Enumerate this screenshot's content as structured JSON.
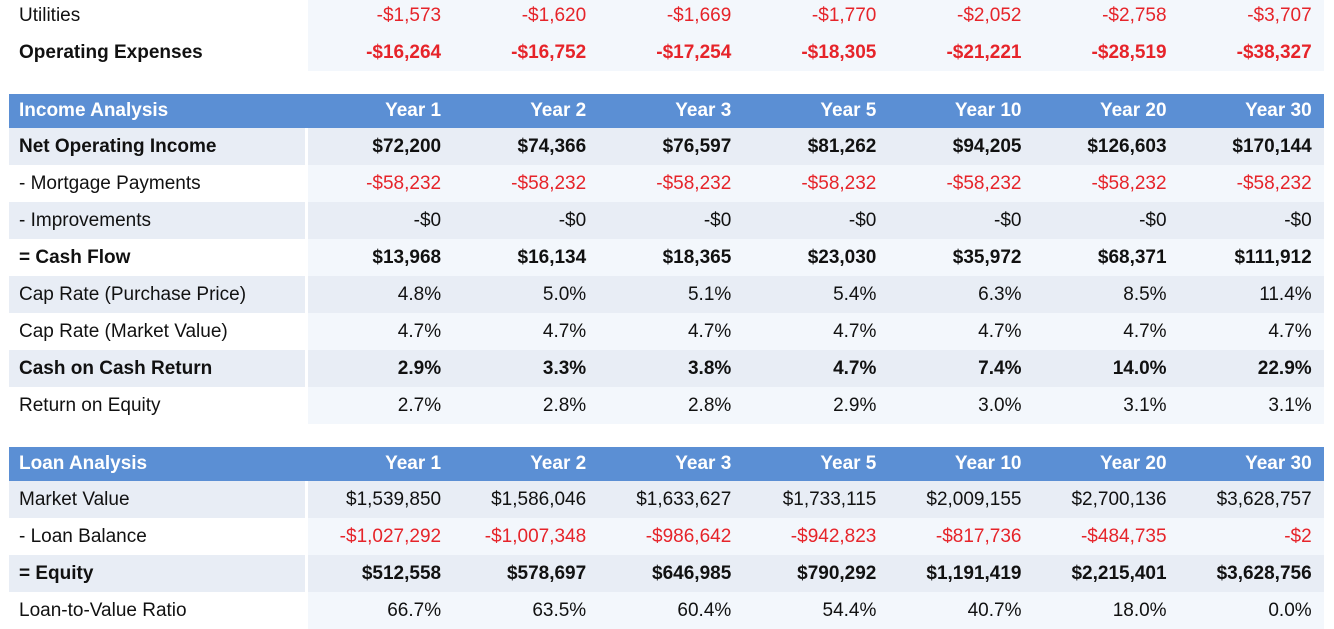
{
  "expenses": {
    "rows": [
      {
        "label": "Utilities",
        "bold": false,
        "style": "light",
        "values": [
          "-$1,573",
          "-$1,620",
          "-$1,669",
          "-$1,770",
          "-$2,052",
          "-$2,758",
          "-$3,707"
        ],
        "negative": true
      },
      {
        "label": "Operating Expenses",
        "bold": true,
        "style": "light",
        "values": [
          "-$16,264",
          "-$16,752",
          "-$17,254",
          "-$18,305",
          "-$21,221",
          "-$28,519",
          "-$38,327"
        ],
        "negative": true
      }
    ]
  },
  "income": {
    "title": "Income Analysis",
    "columns": [
      "Year 1",
      "Year 2",
      "Year 3",
      "Year 5",
      "Year 10",
      "Year 20",
      "Year 30"
    ],
    "rows": [
      {
        "label": "Net Operating Income",
        "bold": true,
        "style": "shaded",
        "values": [
          "$72,200",
          "$74,366",
          "$76,597",
          "$81,262",
          "$94,205",
          "$126,603",
          "$170,144"
        ],
        "negative": false
      },
      {
        "label": "- Mortgage Payments",
        "bold": false,
        "style": "light",
        "values": [
          "-$58,232",
          "-$58,232",
          "-$58,232",
          "-$58,232",
          "-$58,232",
          "-$58,232",
          "-$58,232"
        ],
        "negative": true
      },
      {
        "label": "- Improvements",
        "bold": false,
        "style": "shaded",
        "values": [
          "-$0",
          "-$0",
          "-$0",
          "-$0",
          "-$0",
          "-$0",
          "-$0"
        ],
        "negative": false
      },
      {
        "label": "= Cash Flow",
        "bold": true,
        "style": "light",
        "values": [
          "$13,968",
          "$16,134",
          "$18,365",
          "$23,030",
          "$35,972",
          "$68,371",
          "$111,912"
        ],
        "negative": false
      },
      {
        "label": "Cap Rate (Purchase Price)",
        "bold": false,
        "style": "shaded",
        "values": [
          "4.8%",
          "5.0%",
          "5.1%",
          "5.4%",
          "6.3%",
          "8.5%",
          "11.4%"
        ],
        "negative": false
      },
      {
        "label": "Cap Rate (Market Value)",
        "bold": false,
        "style": "light",
        "values": [
          "4.7%",
          "4.7%",
          "4.7%",
          "4.7%",
          "4.7%",
          "4.7%",
          "4.7%"
        ],
        "negative": false
      },
      {
        "label": "Cash on Cash Return",
        "bold": true,
        "style": "shaded",
        "values": [
          "2.9%",
          "3.3%",
          "3.8%",
          "4.7%",
          "7.4%",
          "14.0%",
          "22.9%"
        ],
        "negative": false
      },
      {
        "label": "Return on Equity",
        "bold": false,
        "style": "light",
        "values": [
          "2.7%",
          "2.8%",
          "2.8%",
          "2.9%",
          "3.0%",
          "3.1%",
          "3.1%"
        ],
        "negative": false
      }
    ]
  },
  "loan": {
    "title": "Loan Analysis",
    "columns": [
      "Year 1",
      "Year 2",
      "Year 3",
      "Year 5",
      "Year 10",
      "Year 20",
      "Year 30"
    ],
    "rows": [
      {
        "label": "Market Value",
        "bold": false,
        "style": "shaded",
        "values": [
          "$1,539,850",
          "$1,586,046",
          "$1,633,627",
          "$1,733,115",
          "$2,009,155",
          "$2,700,136",
          "$3,628,757"
        ],
        "negative": false
      },
      {
        "label": "- Loan Balance",
        "bold": false,
        "style": "light",
        "values": [
          "-$1,027,292",
          "-$1,007,348",
          "-$986,642",
          "-$942,823",
          "-$817,736",
          "-$484,735",
          "-$2"
        ],
        "negative": true
      },
      {
        "label": "= Equity",
        "bold": true,
        "style": "shaded",
        "values": [
          "$512,558",
          "$578,697",
          "$646,985",
          "$790,292",
          "$1,191,419",
          "$2,215,401",
          "$3,628,756"
        ],
        "negative": false
      },
      {
        "label": "Loan-to-Value Ratio",
        "bold": false,
        "style": "light",
        "values": [
          "66.7%",
          "63.5%",
          "60.4%",
          "54.4%",
          "40.7%",
          "18.0%",
          "0.0%"
        ],
        "negative": false
      }
    ]
  },
  "colors": {
    "header_bg": "#5b8fd4",
    "negative": "#e6242a",
    "shaded_row": "#e8edf5",
    "light_row": "#f3f7fc"
  }
}
